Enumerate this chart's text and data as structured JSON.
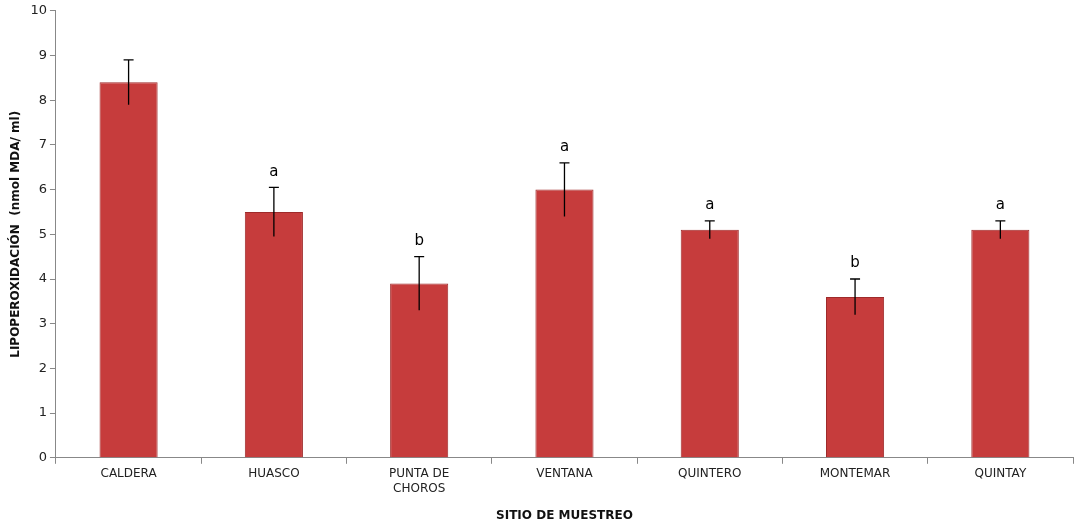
{
  "chart_data": {
    "type": "bar",
    "xlabel": "SITIO DE MUESTREO",
    "ylabel": "LIPOPEROXIDACIÓN  (nmol MDA/ ml)",
    "categories": [
      "CALDERA",
      "HUASCO",
      "PUNTA DE CHOROS",
      "VENTANA",
      "QUINTERO",
      "MONTEMAR",
      "QUINTAY"
    ],
    "values": [
      8.4,
      5.5,
      3.9,
      6.0,
      5.1,
      3.6,
      5.1
    ],
    "errors": [
      0.5,
      0.55,
      0.6,
      0.6,
      0.2,
      0.4,
      0.2
    ],
    "color": "#c63c3c",
    "value_labels": [
      null,
      "a",
      "b",
      "a",
      "a",
      "b",
      "a"
    ],
    "ylim": [
      0,
      10
    ],
    "yticks": [
      0,
      1,
      2,
      3,
      4,
      5,
      6,
      7,
      8,
      9,
      10
    ],
    "grid": false,
    "legend": false
  }
}
